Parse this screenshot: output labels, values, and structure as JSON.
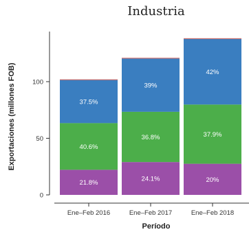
{
  "chart_data": {
    "type": "bar",
    "stacked": true,
    "title": "Industria",
    "xlabel": "Período",
    "ylabel": "Exportaciones (millones FOB)",
    "categories": [
      "Ene–Feb 2016",
      "Ene–Feb 2017",
      "Ene–Feb 2018"
    ],
    "ylim": [
      0,
      140
    ],
    "yticks": [
      0,
      50,
      100
    ],
    "grid": false,
    "legend": "none",
    "colors": {
      "bottom": "#9b4fa8",
      "middle": "#4cae4a",
      "top": "#3a7ec0",
      "top_edge": "#c0504d"
    },
    "series": [
      {
        "values": [
          22.2,
          29.0,
          27.5
        ],
        "labels": [
          "21.8%",
          "24.1%",
          "20%"
        ]
      },
      {
        "values": [
          41.2,
          44.4,
          52.3
        ],
        "labels": [
          "40.6%",
          "36.8%",
          "37.9%"
        ]
      },
      {
        "values": [
          38.0,
          47.0,
          57.9
        ],
        "labels": [
          "37.5%",
          "39%",
          "42%"
        ]
      },
      {
        "values": [
          0.6,
          0.6,
          0.6
        ],
        "labels": [
          "",
          "",
          ""
        ]
      }
    ]
  }
}
